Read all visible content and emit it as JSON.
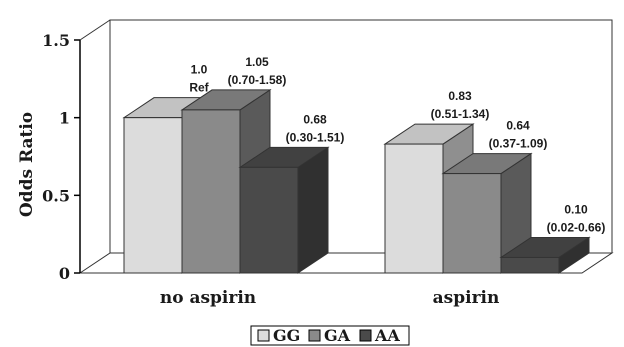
{
  "chart_data": {
    "type": "bar",
    "ylabel": "Odds Ratio",
    "ylim": [
      0,
      1.5
    ],
    "yticks": [
      {
        "value": 0,
        "label": "0"
      },
      {
        "value": 0.5,
        "label": "0.5"
      },
      {
        "value": 1,
        "label": "1"
      },
      {
        "value": 1.5,
        "label": "1.5"
      }
    ],
    "categories": [
      "no aspirin",
      "aspirin"
    ],
    "series": [
      {
        "name": "GG",
        "color": "#dcdcdc",
        "values": [
          1.0,
          0.83
        ],
        "labels": [
          [
            "1.0",
            "Ref"
          ],
          [
            "0.83",
            "(0.51-1.34)"
          ]
        ]
      },
      {
        "name": "GA",
        "color": "#8a8a8a",
        "values": [
          1.05,
          0.64
        ],
        "labels": [
          [
            "1.05",
            "(0.70-1.58)"
          ],
          [
            "0.64",
            "(0.37-1.09)"
          ]
        ]
      },
      {
        "name": "AA",
        "color": "#4a4a4a",
        "values": [
          0.68,
          0.1
        ],
        "labels": [
          [
            "0.68",
            "(0.30-1.51)"
          ],
          [
            "0.10",
            "(0.02-0.66)"
          ]
        ]
      }
    ],
    "grid": false,
    "legend": "bottom"
  }
}
